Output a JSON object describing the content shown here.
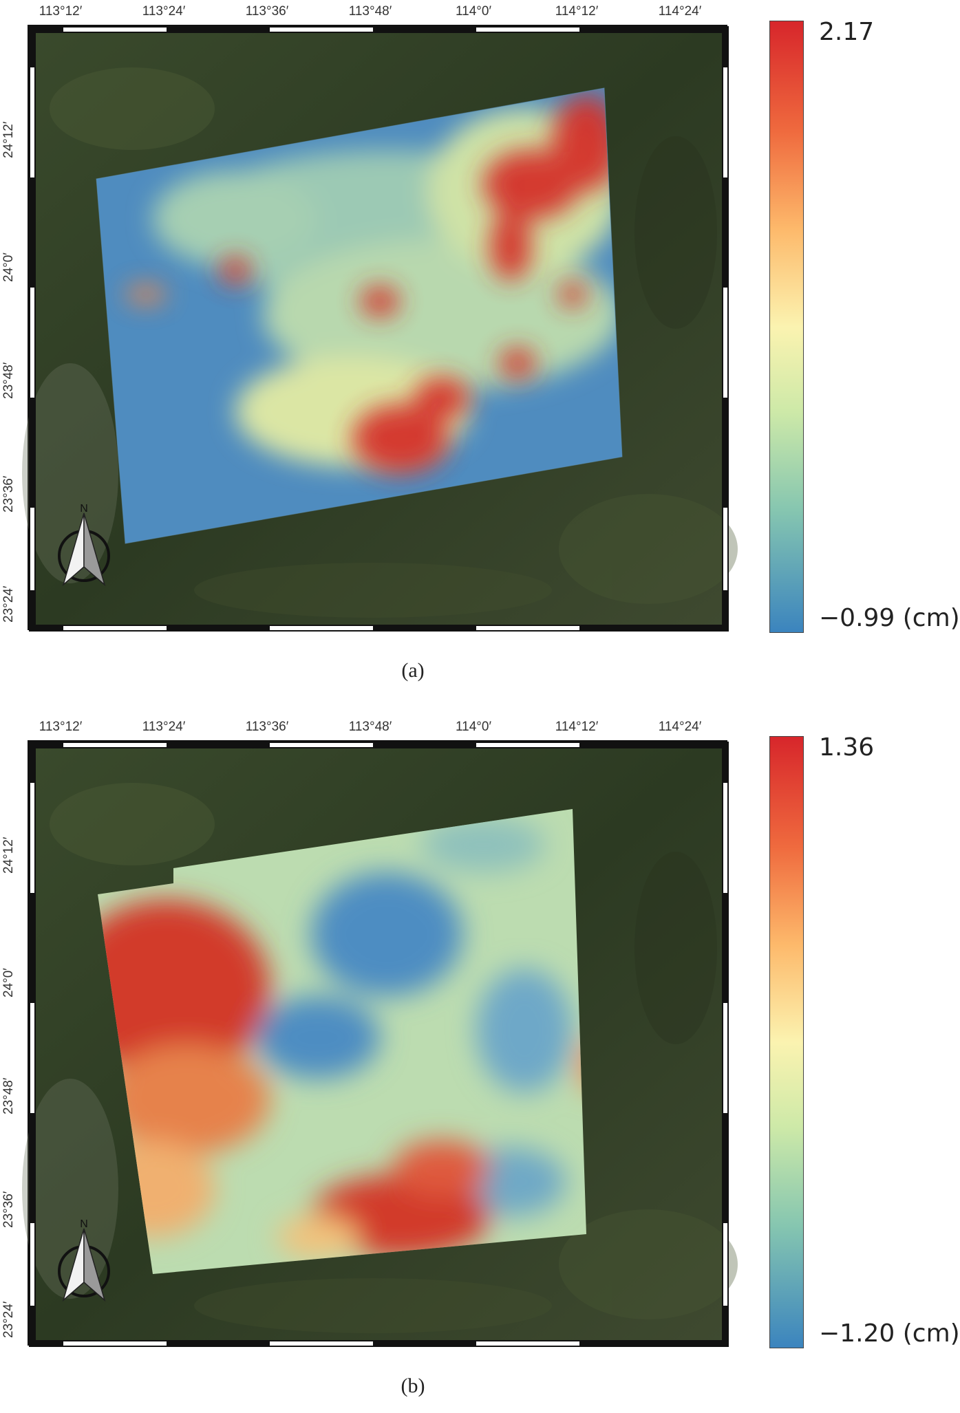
{
  "panels": [
    {
      "id": "a",
      "caption": "(a)",
      "colorbar": {
        "max": "2.17",
        "min": "−0.99 (cm)"
      },
      "lon_ticks": [
        "113°12′",
        "113°24′",
        "113°36′",
        "113°48′",
        "114°0′",
        "114°12′",
        "114°24′"
      ],
      "lat_ticks": [
        "24°12′",
        "24°0′",
        "23°48′",
        "23°36′",
        "23°24′"
      ]
    },
    {
      "id": "b",
      "caption": "(b)",
      "colorbar": {
        "max": "1.36",
        "min": "−1.20 (cm)"
      },
      "lon_ticks": [
        "113°12′",
        "113°24′",
        "113°36′",
        "113°48′",
        "114°0′",
        "114°12′",
        "114°24′"
      ],
      "lat_ticks": [
        "24°12′",
        "24°0′",
        "23°48′",
        "23°36′",
        "23°24′"
      ]
    }
  ],
  "north_label": "N",
  "colors": {
    "basemap": "#33402a",
    "low": "#3b7fb8",
    "mid": "#f2f0b0",
    "high": "#d42a28"
  }
}
